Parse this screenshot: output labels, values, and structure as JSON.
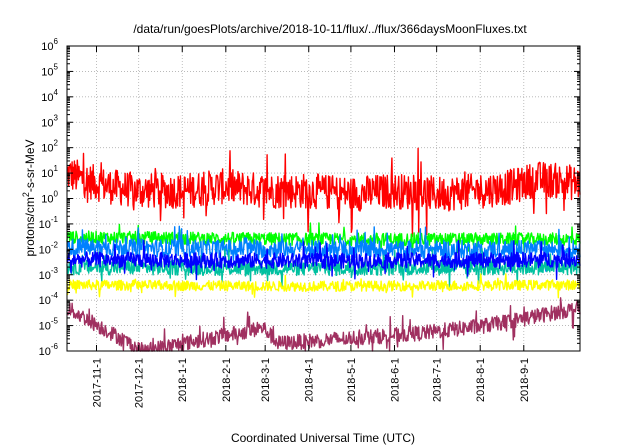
{
  "chart_data": {
    "type": "line",
    "title": "/data/run/goesPlots/archive/2018-10-11/flux/../flux/366daysMoonFluxes.txt",
    "xlabel": "Coordinated Universal Time (UTC)",
    "ylabel_base": "protons/cm",
    "ylabel_sup": "2",
    "ylabel_rest": "-s-sr-MeV",
    "y_scale": "log",
    "ylim": [
      1e-06,
      1000000.0
    ],
    "y_ticks": [
      {
        "value": 1e-06,
        "base": "10",
        "exp": "-6"
      },
      {
        "value": 1e-05,
        "base": "10",
        "exp": "-5"
      },
      {
        "value": 0.0001,
        "base": "10",
        "exp": "-4"
      },
      {
        "value": 0.001,
        "base": "10",
        "exp": "-3"
      },
      {
        "value": 0.01,
        "base": "10",
        "exp": "-2"
      },
      {
        "value": 0.1,
        "base": "10",
        "exp": "-1"
      },
      {
        "value": 1.0,
        "base": "10",
        "exp": "0"
      },
      {
        "value": 10.0,
        "base": "10",
        "exp": "1"
      },
      {
        "value": 100.0,
        "base": "10",
        "exp": "2"
      },
      {
        "value": 1000.0,
        "base": "10",
        "exp": "3"
      },
      {
        "value": 10000.0,
        "base": "10",
        "exp": "4"
      },
      {
        "value": 100000.0,
        "base": "10",
        "exp": "5"
      },
      {
        "value": 1000000.0,
        "base": "10",
        "exp": "6"
      }
    ],
    "xlim": [
      "2017-10-11",
      "2018-10-11"
    ],
    "x_ticks": [
      "2017-11-1",
      "2017-12-1",
      "2018-1-1",
      "2018-2-1",
      "2018-3-1",
      "2018-4-1",
      "2018-5-1",
      "2018-6-1",
      "2018-7-1",
      "2018-8-1",
      "2018-9-1"
    ],
    "grid": true,
    "legend": "none",
    "series": [
      {
        "color": "#ff0000",
        "values": [
          {
            "x": "2017-10-11",
            "y": 10
          },
          {
            "x": "2017-10-25",
            "y": 5
          },
          {
            "x": "2017-11-10",
            "y": 3
          },
          {
            "x": "2017-12-01",
            "y": 2
          },
          {
            "x": "2018-01-01",
            "y": 2
          },
          {
            "x": "2018-02-01",
            "y": 3
          },
          {
            "x": "2018-03-01",
            "y": 2
          },
          {
            "x": "2018-04-01",
            "y": 2
          },
          {
            "x": "2018-05-01",
            "y": 1.5
          },
          {
            "x": "2018-06-01",
            "y": 2
          },
          {
            "x": "2018-07-01",
            "y": 1.5
          },
          {
            "x": "2018-08-01",
            "y": 2
          },
          {
            "x": "2018-08-25",
            "y": 3
          },
          {
            "x": "2018-09-10",
            "y": 6
          },
          {
            "x": "2018-10-11",
            "y": 4
          }
        ]
      },
      {
        "color": "#00ff00",
        "values": [
          {
            "x": "2017-10-11",
            "y": 0.03
          },
          {
            "x": "2018-04-01",
            "y": 0.025
          },
          {
            "x": "2018-10-11",
            "y": 0.025
          }
        ]
      },
      {
        "color": "#0080ff",
        "values": [
          {
            "x": "2017-10-11",
            "y": 0.012
          },
          {
            "x": "2018-04-01",
            "y": 0.01
          },
          {
            "x": "2018-10-11",
            "y": 0.01
          }
        ]
      },
      {
        "color": "#00c0a0",
        "values": [
          {
            "x": "2017-10-11",
            "y": 0.002
          },
          {
            "x": "2018-04-01",
            "y": 0.0018
          },
          {
            "x": "2018-10-11",
            "y": 0.002
          }
        ]
      },
      {
        "color": "#0000ff",
        "values": [
          {
            "x": "2017-10-11",
            "y": 0.004
          },
          {
            "x": "2018-04-01",
            "y": 0.0035
          },
          {
            "x": "2018-10-11",
            "y": 0.004
          }
        ]
      },
      {
        "color": "#ffff00",
        "values": [
          {
            "x": "2017-10-11",
            "y": 0.0004
          },
          {
            "x": "2018-04-01",
            "y": 0.00035
          },
          {
            "x": "2018-10-11",
            "y": 0.0004
          }
        ]
      },
      {
        "color": "#a03060",
        "values": [
          {
            "x": "2017-10-11",
            "y": 5e-05
          },
          {
            "x": "2017-12-04",
            "y": 1e-06
          },
          {
            "x": "2018-02-28",
            "y": 8e-06
          },
          {
            "x": "2018-03-10",
            "y": 2e-06
          },
          {
            "x": "2018-06-20",
            "y": 5e-06
          },
          {
            "x": "2018-08-05",
            "y": 1e-05
          },
          {
            "x": "2018-10-11",
            "y": 5e-05
          }
        ]
      }
    ]
  }
}
